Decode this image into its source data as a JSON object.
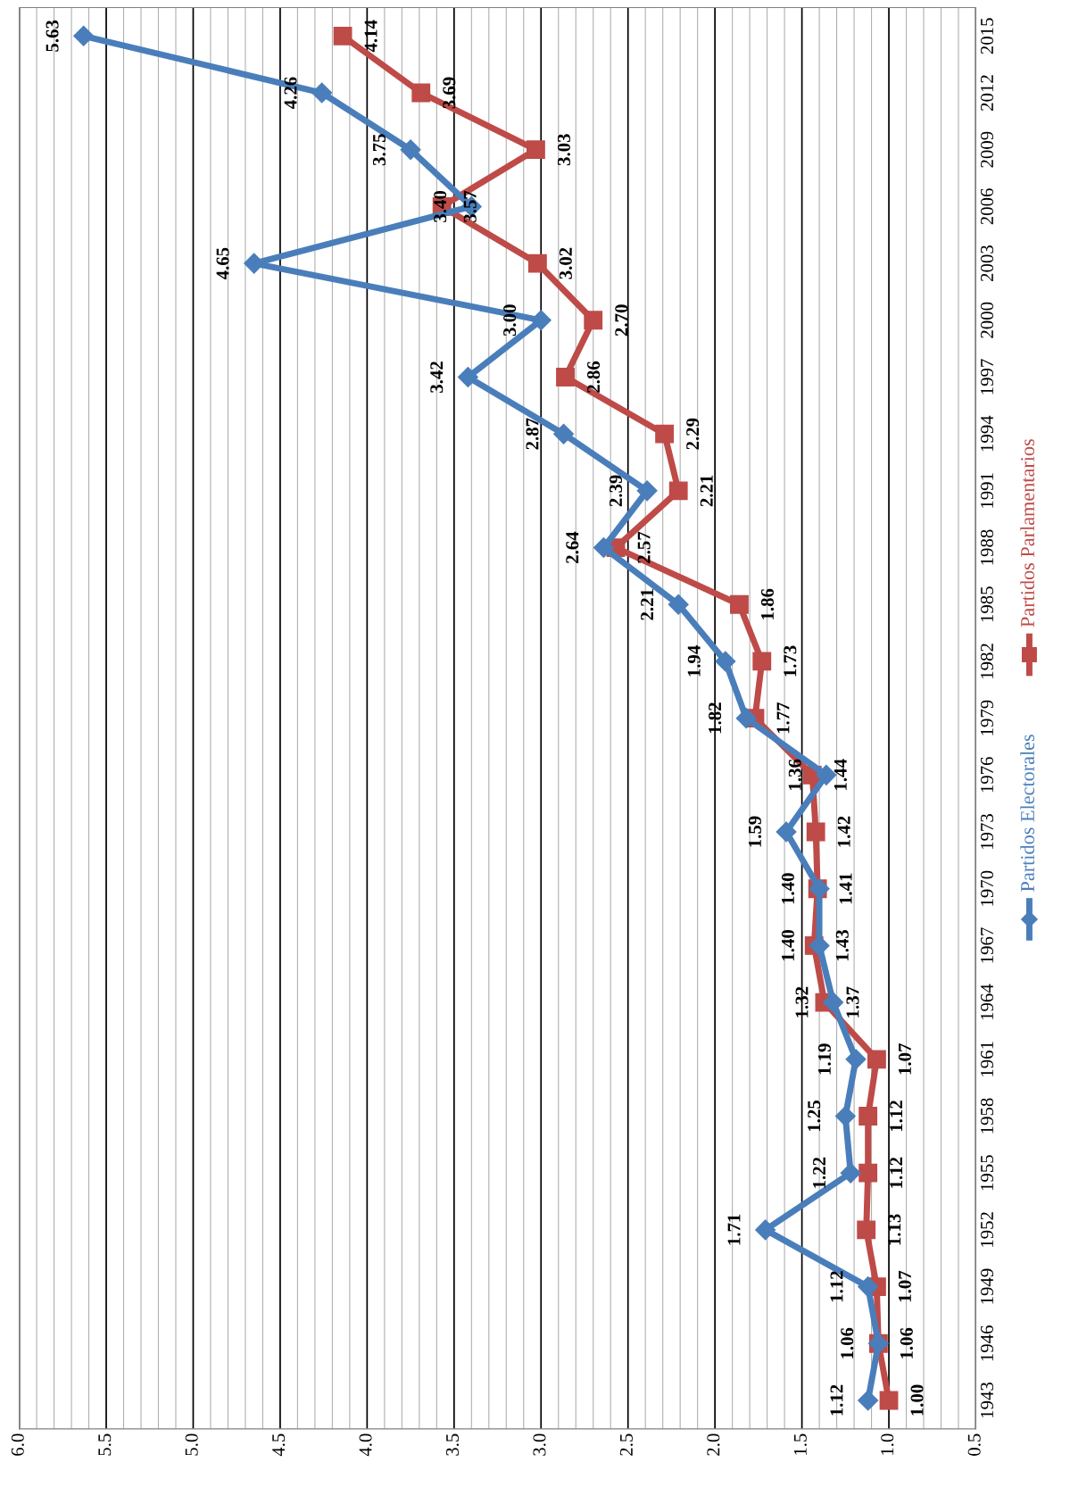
{
  "chart_data": {
    "type": "line",
    "orientation": "horizontal",
    "categories": [
      "2015",
      "2012",
      "2009",
      "2006",
      "2003",
      "2000",
      "1997",
      "1994",
      "1991",
      "1988",
      "1985",
      "1982",
      "1979",
      "1976",
      "1973",
      "1970",
      "1967",
      "1964",
      "1961",
      "1958",
      "1955",
      "1952",
      "1949",
      "1946",
      "1943"
    ],
    "series": [
      {
        "name": "Partidos Electorales",
        "color": "#4a7ebb",
        "marker": "diamond",
        "values": [
          5.63,
          4.26,
          3.75,
          3.4,
          4.65,
          3.0,
          3.42,
          2.87,
          2.39,
          2.64,
          2.21,
          1.94,
          1.82,
          1.36,
          1.59,
          1.4,
          1.4,
          1.32,
          1.19,
          1.25,
          1.22,
          1.71,
          1.12,
          1.06,
          1.12
        ],
        "value_labels": [
          "5.63",
          "4.26",
          "3.75",
          "3.40",
          "4.65",
          "3.00",
          "3.42",
          "2.87",
          "2.39",
          "2.64",
          "2.21",
          "1.94",
          "1.82",
          "1.36",
          "1.59",
          "1.40",
          "1.40",
          "1.32",
          "1.19",
          "1.25",
          "1.22",
          "1.71",
          "1.12",
          "1.06",
          "1.12"
        ]
      },
      {
        "name": "Partidos Parlamentarios",
        "color": "#be4b48",
        "marker": "square",
        "values": [
          4.14,
          3.69,
          3.03,
          3.57,
          3.02,
          2.7,
          2.86,
          2.29,
          2.21,
          2.57,
          1.86,
          1.73,
          1.77,
          1.44,
          1.42,
          1.41,
          1.43,
          1.37,
          1.07,
          1.12,
          1.12,
          1.13,
          1.07,
          1.06,
          1.0
        ],
        "value_labels": [
          "4.14",
          "3.69",
          "3.03",
          "3.57",
          "3.02",
          "2.70",
          "2.86",
          "2.29",
          "2.21",
          "2.57",
          "1.86",
          "1.73",
          "1.77",
          "1.44",
          "1.42",
          "1.41",
          "1.43",
          "1.37",
          "1.07",
          "1.12",
          "1.12",
          "1.13",
          "1.07",
          "1.06",
          "1.00"
        ]
      }
    ],
    "xlim": [
      6.0,
      0.5
    ],
    "xticks": [
      {
        "value": 6.0,
        "label": "6.0"
      },
      {
        "value": 5.5,
        "label": "5.5"
      },
      {
        "value": 5.0,
        "label": "5.0"
      },
      {
        "value": 4.5,
        "label": "4.5"
      },
      {
        "value": 4.0,
        "label": "4.0"
      },
      {
        "value": 3.5,
        "label": "3.5"
      },
      {
        "value": 3.0,
        "label": "3.0"
      },
      {
        "value": 2.5,
        "label": "2.5"
      },
      {
        "value": 2.0,
        "label": "2.0"
      },
      {
        "value": 1.5,
        "label": "1.5"
      },
      {
        "value": 1.0,
        "label": "1.0"
      },
      {
        "value": 0.5,
        "label": "0.5"
      }
    ],
    "grid": "x",
    "legend": "right"
  }
}
